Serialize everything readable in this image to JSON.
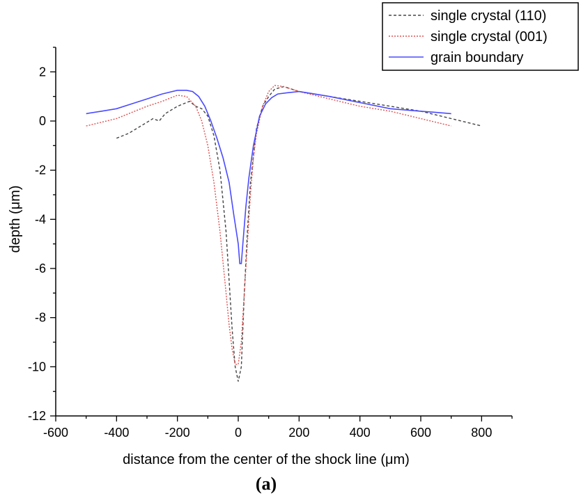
{
  "chart_data": {
    "type": "line",
    "xlabel": "distance from the center of the shock line (μm)",
    "ylabel": "depth (μm)",
    "caption": "(a)",
    "xlim": [
      -600,
      900
    ],
    "ylim": [
      -12,
      3
    ],
    "xticks": [
      -600,
      -400,
      -200,
      0,
      200,
      400,
      600,
      800
    ],
    "yticks": [
      2,
      0,
      -2,
      -4,
      -6,
      -8,
      -10,
      -12
    ],
    "grid": false,
    "legend_position": "top-right",
    "series": [
      {
        "name": "single crystal (110)",
        "color": "#444444",
        "style": "dashed",
        "x": [
          -400,
          -360,
          -320,
          -280,
          -260,
          -240,
          -200,
          -160,
          -140,
          -120,
          -100,
          -80,
          -60,
          -40,
          -30,
          -20,
          -10,
          0,
          10,
          20,
          30,
          40,
          60,
          80,
          100,
          120,
          150,
          200,
          300,
          400,
          500,
          600,
          700,
          800
        ],
        "y": [
          -0.7,
          -0.5,
          -0.2,
          0.1,
          0.0,
          0.3,
          0.6,
          0.8,
          0.6,
          0.5,
          0.2,
          -0.6,
          -2.0,
          -4.5,
          -6.5,
          -8.5,
          -10.0,
          -10.6,
          -10.0,
          -7.0,
          -4.5,
          -2.5,
          -0.3,
          0.6,
          1.0,
          1.3,
          1.4,
          1.2,
          1.0,
          0.8,
          0.6,
          0.4,
          0.1,
          -0.2
        ]
      },
      {
        "name": "single crystal (001)",
        "color": "#e05050",
        "style": "dotted",
        "x": [
          -500,
          -450,
          -400,
          -350,
          -300,
          -250,
          -200,
          -170,
          -140,
          -120,
          -100,
          -80,
          -60,
          -40,
          -30,
          -20,
          -10,
          0,
          10,
          20,
          30,
          40,
          50,
          60,
          80,
          100,
          120,
          150,
          200,
          300,
          400,
          500,
          600,
          700
        ],
        "y": [
          -0.2,
          -0.05,
          0.1,
          0.35,
          0.6,
          0.8,
          1.05,
          1.0,
          0.6,
          0.0,
          -1.0,
          -2.5,
          -4.5,
          -7.0,
          -8.3,
          -9.3,
          -9.9,
          -9.9,
          -9.0,
          -7.0,
          -5.0,
          -3.0,
          -1.5,
          -0.5,
          0.6,
          1.2,
          1.45,
          1.4,
          1.2,
          0.9,
          0.6,
          0.4,
          0.1,
          -0.2
        ]
      },
      {
        "name": "grain boundary",
        "color": "#4a4aff",
        "style": "solid",
        "x": [
          -500,
          -450,
          -400,
          -350,
          -300,
          -250,
          -200,
          -170,
          -150,
          -130,
          -110,
          -90,
          -70,
          -50,
          -30,
          -15,
          0,
          5,
          10,
          15,
          25,
          35,
          50,
          70,
          90,
          110,
          130,
          160,
          200,
          250,
          300,
          400,
          500,
          600,
          650,
          700
        ],
        "y": [
          0.3,
          0.4,
          0.5,
          0.7,
          0.9,
          1.1,
          1.25,
          1.25,
          1.2,
          1.0,
          0.6,
          0.0,
          -0.7,
          -1.5,
          -2.5,
          -3.8,
          -5.0,
          -5.8,
          -5.8,
          -5.0,
          -3.5,
          -2.3,
          -1.0,
          0.2,
          0.7,
          0.95,
          1.1,
          1.15,
          1.2,
          1.1,
          1.0,
          0.75,
          0.5,
          0.4,
          0.35,
          0.3
        ]
      }
    ]
  }
}
